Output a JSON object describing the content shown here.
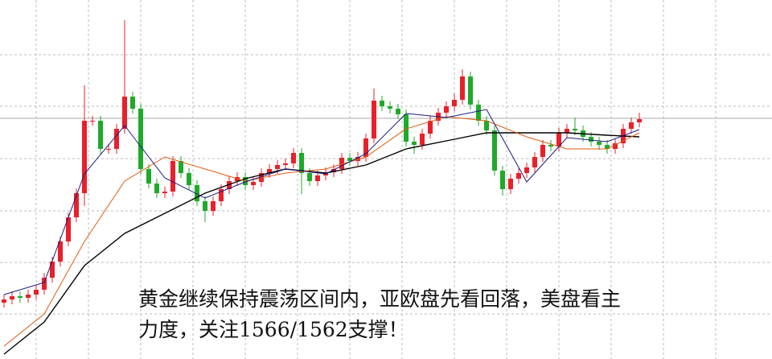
{
  "chart_data": {
    "type": "candlestick",
    "ylim": [
      0,
      446
    ],
    "yticks": [
      56,
      120,
      184,
      249,
      314,
      378
    ],
    "grid": true,
    "price_line": 299,
    "up_color": "#e8202a",
    "down_color": "#1faa2a",
    "open": [
      70,
      74,
      78,
      76,
      80,
      86,
      101,
      121,
      146,
      176,
      206,
      296,
      296,
      261,
      261,
      286,
      326,
      311,
      236,
      218,
      206,
      208,
      246,
      231,
      216,
      196,
      184,
      196,
      211,
      221,
      226,
      216,
      220,
      231,
      236,
      241,
      243,
      256,
      231,
      221,
      228,
      232,
      236,
      250,
      246,
      251,
      274,
      321,
      314,
      311,
      304,
      270,
      266,
      280,
      296,
      306,
      314,
      322,
      351,
      316,
      296,
      284,
      234,
      211,
      224,
      231,
      238,
      251,
      266,
      264,
      281,
      286,
      284,
      276,
      270,
      266,
      261,
      268,
      286,
      294
    ],
    "high": [
      80,
      84,
      84,
      86,
      92,
      107,
      127,
      152,
      182,
      212,
      340,
      302,
      302,
      267,
      292,
      421,
      332,
      317,
      242,
      224,
      214,
      252,
      252,
      237,
      222,
      202,
      202,
      217,
      227,
      232,
      232,
      226,
      237,
      242,
      247,
      249,
      262,
      262,
      237,
      234,
      238,
      242,
      256,
      256,
      257,
      280,
      336,
      327,
      320,
      317,
      310,
      276,
      286,
      302,
      312,
      320,
      330,
      360,
      357,
      322,
      302,
      290,
      240,
      230,
      237,
      244,
      257,
      272,
      272,
      287,
      292,
      300,
      290,
      282,
      276,
      272,
      274,
      292,
      300,
      306
    ],
    "low": [
      64,
      68,
      70,
      70,
      74,
      80,
      95,
      115,
      140,
      170,
      190,
      290,
      255,
      255,
      255,
      280,
      305,
      230,
      212,
      200,
      200,
      202,
      225,
      210,
      190,
      170,
      178,
      190,
      205,
      215,
      210,
      210,
      214,
      225,
      230,
      235,
      237,
      205,
      215,
      215,
      222,
      226,
      230,
      240,
      240,
      245,
      268,
      308,
      305,
      298,
      264,
      255,
      260,
      274,
      290,
      300,
      308,
      316,
      310,
      290,
      278,
      228,
      203,
      205,
      218,
      225,
      232,
      245,
      258,
      258,
      275,
      278,
      270,
      264,
      260,
      255,
      255,
      262,
      280,
      288
    ],
    "close": [
      74,
      78,
      76,
      80,
      86,
      101,
      121,
      146,
      176,
      206,
      296,
      296,
      261,
      261,
      286,
      326,
      311,
      236,
      218,
      206,
      208,
      246,
      231,
      216,
      196,
      184,
      196,
      211,
      221,
      226,
      216,
      220,
      231,
      236,
      241,
      243,
      256,
      231,
      221,
      228,
      232,
      236,
      250,
      246,
      251,
      274,
      321,
      314,
      311,
      304,
      270,
      266,
      280,
      296,
      306,
      314,
      322,
      351,
      316,
      296,
      284,
      234,
      211,
      224,
      231,
      238,
      251,
      266,
      264,
      281,
      286,
      284,
      276,
      270,
      266,
      261,
      268,
      286,
      294,
      298
    ],
    "series": [
      {
        "color": "#000000",
        "width": 1.4,
        "x": [
          0,
          5,
          10,
          15,
          20,
          25,
          30,
          35,
          40,
          45,
          50,
          55,
          60,
          65,
          70,
          75,
          79
        ],
        "values": [
          6,
          46,
          116,
          156,
          181,
          206,
          224,
          236,
          231,
          241,
          261,
          271,
          281,
          281,
          281,
          278,
          276
        ]
      },
      {
        "color": "#e05a10",
        "width": 1,
        "x": [
          0,
          5,
          10,
          15,
          20,
          25,
          30,
          35,
          40,
          45,
          50,
          55,
          60,
          65,
          70,
          75,
          79
        ],
        "values": [
          16,
          56,
          146,
          221,
          251,
          236,
          221,
          231,
          236,
          251,
          286,
          301,
          296,
          276,
          261,
          261,
          281
        ]
      },
      {
        "color": "#1a1a80",
        "width": 1,
        "x": [
          0,
          5,
          10,
          15,
          20,
          25,
          30,
          35,
          40,
          45,
          50,
          55,
          60,
          65,
          70,
          75,
          79
        ],
        "values": [
          80,
          95,
          230,
          290,
          225,
          200,
          220,
          236,
          230,
          255,
          305,
          300,
          310,
          220,
          275,
          270,
          285
        ]
      }
    ],
    "annotation_lines": [
      "黄金继续保持震荡区间内，亚欧盘先看回落，美盘看主",
      "力度，关注1566/1562支撑！"
    ]
  }
}
